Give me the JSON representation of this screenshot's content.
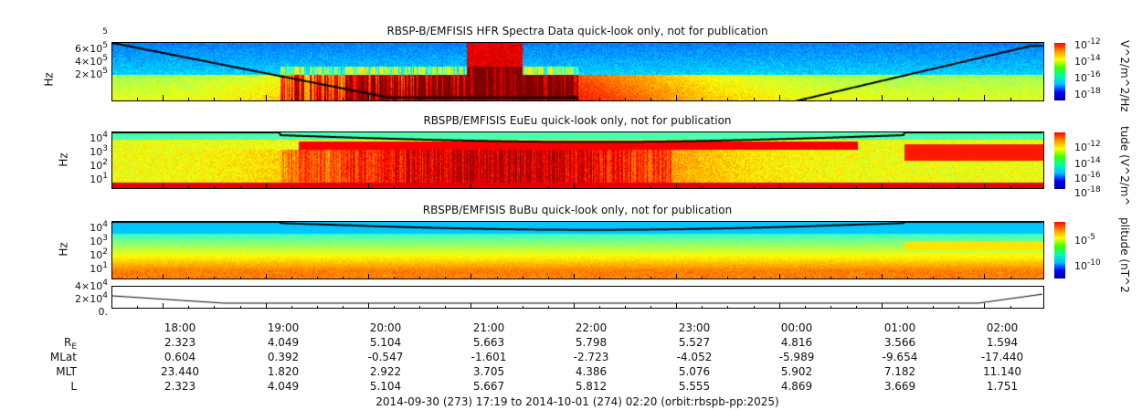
{
  "chart_data": {
    "type": "heatmap",
    "panels": [
      {
        "title": "RBSP-B/EMFISIS  HFR Spectra Data quick-look only, not for publication",
        "ylabel": "Hz",
        "yticks": [
          "6×10",
          "4×10",
          "2×10"
        ],
        "ytick_exp": "5",
        "colorbar_ticks": [
          "-12",
          "-14",
          "-16",
          "-18"
        ],
        "colorbar_label": "V^2/m^2/Hz"
      },
      {
        "title": "RBSPB/EMFISIS  EuEu quick-look only, not for publication",
        "ylabel": "Hz",
        "yticks_exp": [
          "4",
          "3",
          "2",
          "1"
        ],
        "colorbar_ticks": [
          "-12",
          "-14",
          "-16",
          "-18"
        ],
        "colorbar_label": "tude (V^2/m^"
      },
      {
        "title": "RBSPB/EMFISIS  BuBu quick-look only, not for publication",
        "ylabel": "Hz",
        "yticks_exp": [
          "4",
          "3",
          "2",
          "1"
        ],
        "colorbar_ticks": [
          "-5",
          "-10"
        ],
        "colorbar_label": "plitude (nT^2"
      },
      {
        "ytick_labels": [
          "4×10",
          "2×10",
          "0."
        ],
        "ytick_exp": "4"
      }
    ],
    "x_ticks": [
      "18:00",
      "19:00",
      "20:00",
      "21:00",
      "22:00",
      "23:00",
      "00:00",
      "01:00",
      "02:00"
    ],
    "ephemeris": [
      {
        "label": "R",
        "sub": "E",
        "values": [
          "2.323",
          "4.049",
          "5.104",
          "5.663",
          "5.798",
          "5.527",
          "4.816",
          "3.566",
          "1.594"
        ]
      },
      {
        "label": "MLat",
        "values": [
          "0.604",
          "0.392",
          "-0.547",
          "-1.601",
          "-2.723",
          "-4.052",
          "-5.989",
          "-9.654",
          "-17.440"
        ]
      },
      {
        "label": "MLT",
        "values": [
          "23.440",
          "1.820",
          "2.922",
          "3.705",
          "4.386",
          "5.076",
          "5.902",
          "7.182",
          "11.140"
        ]
      },
      {
        "label": "L",
        "values": [
          "2.323",
          "4.049",
          "5.104",
          "5.667",
          "5.812",
          "5.555",
          "4.869",
          "3.669",
          "1.751"
        ]
      }
    ],
    "footer": "2014-09-30 (273) 17:19 to 2014-10-01 (274) 02:20 (orbit:rbspb-pp:2025)"
  }
}
